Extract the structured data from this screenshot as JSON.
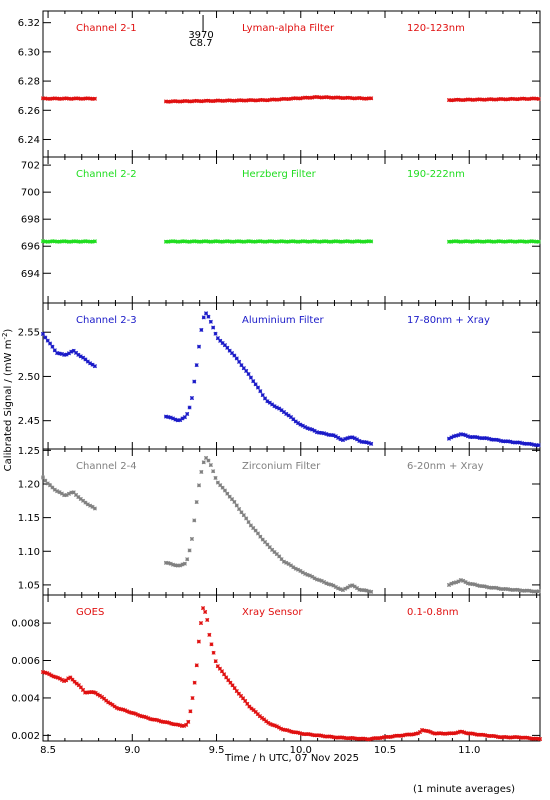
{
  "figure": {
    "ylabel": "Calibrated Signal / (mW m",
    "ylabel_sup": "-2",
    "ylabel_end": ")",
    "xlabel": "Time / h UTC, 07 Nov 2025",
    "footnote": "(1 minute averages)",
    "x_ticks": [
      "8.5",
      "9.0",
      "9.5",
      "10.0",
      "10.5",
      "11.0"
    ],
    "flare_marker": {
      "line1": "3970",
      "line2": "C8.7",
      "time": 9.42
    }
  },
  "chart_data": [
    {
      "type": "scatter",
      "channel": "Channel 2-1",
      "filter": "Lyman-alpha Filter",
      "band": "120-123nm",
      "color": "#e01010",
      "xlim": [
        8.47,
        11.42
      ],
      "ylim": [
        6.228,
        6.328
      ],
      "yticks": [
        6.24,
        6.26,
        6.28,
        6.3,
        6.32
      ],
      "ytick_labels": [
        "6.24",
        "6.26",
        "6.28",
        "6.30",
        "6.32"
      ],
      "segments": [
        [
          8.47,
          8.78
        ],
        [
          9.2,
          10.42
        ],
        [
          10.88,
          11.42
        ]
      ],
      "series": [
        {
          "x": [
            8.47,
            8.78,
            9.2,
            9.8,
            10.1,
            10.42,
            10.88,
            11.42
          ],
          "y": [
            6.268,
            6.268,
            6.266,
            6.267,
            6.269,
            6.268,
            6.267,
            6.268
          ]
        }
      ]
    },
    {
      "type": "scatter",
      "channel": "Channel 2-2",
      "filter": "Herzberg Filter",
      "band": "190-222nm",
      "color": "#20dd20",
      "xlim": [
        8.47,
        11.42
      ],
      "ylim": [
        691.8,
        702.6
      ],
      "yticks": [
        694,
        696,
        698,
        700,
        702
      ],
      "ytick_labels": [
        "694",
        "696",
        "698",
        "700",
        "702"
      ],
      "segments": [
        [
          8.47,
          8.78
        ],
        [
          9.2,
          10.42
        ],
        [
          10.88,
          11.42
        ]
      ],
      "series": [
        {
          "x": [
            8.47,
            8.78,
            9.2,
            10.42,
            10.88,
            11.42
          ],
          "y": [
            696.35,
            696.35,
            696.35,
            696.35,
            696.35,
            696.35
          ]
        }
      ]
    },
    {
      "type": "scatter",
      "channel": "Channel 2-3",
      "filter": "Aluminium Filter",
      "band": "17-80nm + Xray",
      "color": "#1a1ac8",
      "xlim": [
        8.47,
        11.42
      ],
      "ylim": [
        2.418,
        2.583
      ],
      "yticks": [
        2.45,
        2.5,
        2.55
      ],
      "ytick_labels": [
        "2.45",
        "2.50",
        "2.55"
      ],
      "segments": [
        [
          8.47,
          8.78
        ],
        [
          9.2,
          10.42
        ],
        [
          10.88,
          11.42
        ]
      ],
      "series": [
        {
          "x": [
            8.47,
            8.55,
            8.6,
            8.65,
            8.7,
            8.78,
            9.2,
            9.28,
            9.32,
            9.35,
            9.38,
            9.4,
            9.42,
            9.44,
            9.46,
            9.5,
            9.6,
            9.7,
            9.8,
            9.9,
            10.0,
            10.1,
            10.2,
            10.25,
            10.3,
            10.35,
            10.42,
            10.88,
            10.95,
            11.0,
            11.1,
            11.2,
            11.3,
            11.42
          ],
          "y": [
            2.548,
            2.527,
            2.524,
            2.529,
            2.522,
            2.511,
            2.455,
            2.45,
            2.455,
            2.47,
            2.51,
            2.54,
            2.565,
            2.572,
            2.565,
            2.545,
            2.525,
            2.5,
            2.472,
            2.46,
            2.445,
            2.437,
            2.433,
            2.428,
            2.432,
            2.427,
            2.424,
            2.43,
            2.435,
            2.432,
            2.43,
            2.427,
            2.425,
            2.422
          ]
        }
      ]
    },
    {
      "type": "scatter",
      "channel": "Channel 2-4",
      "filter": "Zirconium Filter",
      "band": "6-20nm + Xray",
      "color": "#808080",
      "xlim": [
        8.47,
        11.42
      ],
      "ylim": [
        1.035,
        1.252
      ],
      "yticks": [
        1.05,
        1.1,
        1.15,
        1.2,
        1.25
      ],
      "ytick_labels": [
        "1.05",
        "1.10",
        "1.15",
        "1.20",
        "1.25"
      ],
      "segments": [
        [
          8.47,
          8.78
        ],
        [
          9.2,
          10.42
        ],
        [
          10.88,
          11.42
        ]
      ],
      "series": [
        {
          "x": [
            8.47,
            8.5,
            8.55,
            8.6,
            8.65,
            8.7,
            8.78,
            9.2,
            9.28,
            9.32,
            9.35,
            9.38,
            9.4,
            9.42,
            9.44,
            9.46,
            9.5,
            9.6,
            9.7,
            9.8,
            9.9,
            10.0,
            10.1,
            10.2,
            10.25,
            10.3,
            10.35,
            10.42,
            10.88,
            10.95,
            11.0,
            11.1,
            11.2,
            11.3,
            11.42
          ],
          "y": [
            1.21,
            1.2,
            1.19,
            1.183,
            1.188,
            1.176,
            1.163,
            1.083,
            1.078,
            1.083,
            1.11,
            1.17,
            1.205,
            1.23,
            1.24,
            1.232,
            1.205,
            1.175,
            1.14,
            1.11,
            1.085,
            1.07,
            1.058,
            1.048,
            1.042,
            1.05,
            1.043,
            1.04,
            1.05,
            1.057,
            1.052,
            1.047,
            1.044,
            1.042,
            1.04
          ]
        }
      ]
    },
    {
      "type": "scatter",
      "channel": "GOES",
      "filter": "Xray Sensor",
      "band": "0.1-0.8nm",
      "color": "#e01010",
      "xlim": [
        8.47,
        11.42
      ],
      "ylim": [
        0.0017,
        0.0095
      ],
      "yticks": [
        0.002,
        0.004,
        0.006,
        0.008
      ],
      "ytick_labels": [
        "0.002",
        "0.004",
        "0.006",
        "0.008"
      ],
      "segments": [
        [
          8.47,
          11.42
        ]
      ],
      "series": [
        {
          "x": [
            8.47,
            8.55,
            8.6,
            8.63,
            8.68,
            8.72,
            8.78,
            8.9,
            9.0,
            9.1,
            9.2,
            9.3,
            9.33,
            9.35,
            9.38,
            9.4,
            9.42,
            9.44,
            9.46,
            9.5,
            9.6,
            9.7,
            9.8,
            9.9,
            10.0,
            10.2,
            10.4,
            10.5,
            10.6,
            10.7,
            10.72,
            10.8,
            10.9,
            10.95,
            11.0,
            11.1,
            11.2,
            11.3,
            11.42
          ],
          "y": [
            0.0054,
            0.0051,
            0.0049,
            0.0051,
            0.0047,
            0.0043,
            0.0043,
            0.0035,
            0.0032,
            0.0029,
            0.0027,
            0.0025,
            0.0026,
            0.0035,
            0.0055,
            0.0075,
            0.0088,
            0.0085,
            0.0072,
            0.0058,
            0.0046,
            0.0035,
            0.0027,
            0.0023,
            0.0021,
            0.0019,
            0.0018,
            0.0019,
            0.002,
            0.0021,
            0.0023,
            0.0021,
            0.0021,
            0.0022,
            0.0021,
            0.002,
            0.0019,
            0.0019,
            0.0018
          ]
        }
      ]
    }
  ]
}
